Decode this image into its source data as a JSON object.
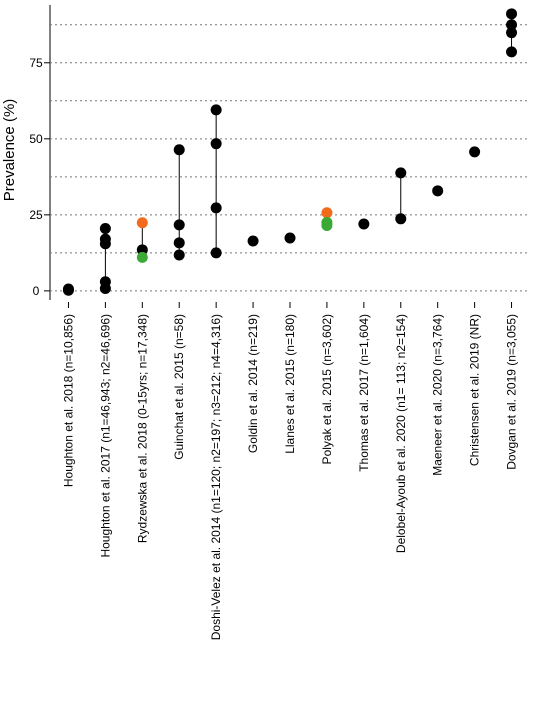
{
  "chart_data": {
    "type": "dot-range",
    "y_label": "Prevalence (%)",
    "categories": [
      "Houghton et al. 2018 (n=10,856)",
      "Houghton et al. 2017  (n1=46,943; n2=46,696)",
      "Rydzewska et al. 2018 (0-15yrs; n=17,348)",
      "Guinchat et al. 2015 (n=58)",
      "Doshi-Velez et al. 2014 (n1=120; n2=197; n3=212; n4=4,316)",
      "Goldin  et al. 2014 (n=219)",
      "Llanes et al. 2015 (n=180)",
      "Polyak et al. 2015 (n=3,602)",
      "Thomas et al. 2017 (n=1,604)",
      "Delobel-Ayoub et al. 2020 (n1= 113; n2=154)",
      "Maeneer et al. 2020 (n=3,764)",
      "Christensen et al. 2019 (NR)",
      "Dovgan  et al. 2019 (n=3,055)"
    ],
    "values": [
      [
        0.2,
        0.6
      ],
      [
        20.5,
        17,
        15.5,
        3,
        0.8
      ],
      [
        22.4,
        13.5,
        11
      ],
      [
        46.4,
        21.7,
        15.8,
        11.8
      ],
      [
        59.5,
        48.4,
        27.3,
        12.5
      ],
      [
        16.4
      ],
      [
        17.4
      ],
      [
        25.7,
        22.5,
        21.5
      ],
      [
        22
      ],
      [
        38.8,
        23.7
      ],
      [
        32.9
      ],
      [
        45.7
      ],
      [
        91.1,
        87.5,
        84.9,
        78.6
      ]
    ],
    "colors": [
      [
        "#000000",
        "#000000"
      ],
      [
        "#000000",
        "#000000",
        "#000000",
        "#000000",
        "#000000"
      ],
      [
        "#f26b1d",
        "#000000",
        "#3aa935"
      ],
      [
        "#000000",
        "#000000",
        "#000000",
        "#000000"
      ],
      [
        "#000000",
        "#000000",
        "#000000",
        "#000000"
      ],
      [
        "#000000"
      ],
      [
        "#000000"
      ],
      [
        "#f26b1d",
        "#3aa935",
        "#3aa935"
      ],
      [
        "#000000"
      ],
      [
        "#000000",
        "#000000"
      ],
      [
        "#000000"
      ],
      [
        "#000000"
      ],
      [
        "#000000",
        "#000000",
        "#000000",
        "#000000"
      ]
    ],
    "ylim": [
      -3,
      94
    ],
    "yticks": [
      0,
      25,
      50,
      75
    ],
    "grid_lines": [
      0,
      12.5,
      25,
      37.5,
      50,
      62.5,
      75,
      87.5
    ],
    "grid": true
  }
}
